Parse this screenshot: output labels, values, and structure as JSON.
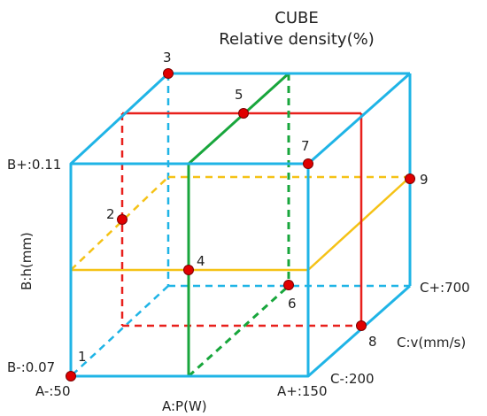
{
  "title": "CUBE",
  "subtitle": "Relative density(%)",
  "axes": {
    "a_axis": "A:P(W)",
    "b_axis": "B:h(mm)",
    "c_axis": "C:v(mm/s)"
  },
  "levels": {
    "a_minus": "A-:50",
    "a_plus": "A+:150",
    "b_minus": "B-:0.07",
    "b_plus": "B+:0.11",
    "c_minus": "C-:200",
    "c_plus": "C+:700"
  },
  "points": [
    {
      "id": "1",
      "label": "1"
    },
    {
      "id": "2",
      "label": "2"
    },
    {
      "id": "3",
      "label": "3"
    },
    {
      "id": "4",
      "label": "4"
    },
    {
      "id": "5",
      "label": "5"
    },
    {
      "id": "6",
      "label": "6"
    },
    {
      "id": "7",
      "label": "7"
    },
    {
      "id": "8",
      "label": "8"
    },
    {
      "id": "9",
      "label": "9"
    }
  ],
  "colors": {
    "cube_edges": "#1fb4e6",
    "red_plane": "#e8201c",
    "green_plane": "#18a63c",
    "yellow_plane": "#f5c216",
    "point_fill": "#e00000",
    "point_stroke": "#7a0000"
  }
}
